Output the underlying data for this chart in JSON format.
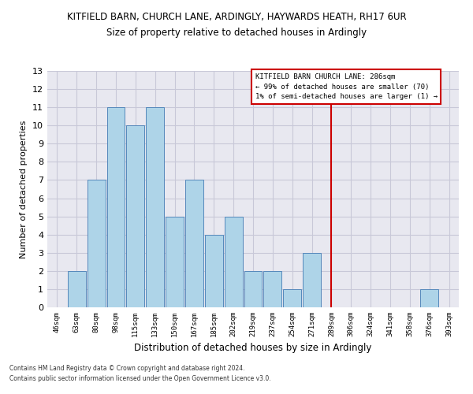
{
  "title_line1": "KITFIELD BARN, CHURCH LANE, ARDINGLY, HAYWARDS HEATH, RH17 6UR",
  "title_line2": "Size of property relative to detached houses in Ardingly",
  "xlabel": "Distribution of detached houses by size in Ardingly",
  "ylabel": "Number of detached properties",
  "bin_labels": [
    "46sqm",
    "63sqm",
    "80sqm",
    "98sqm",
    "115sqm",
    "133sqm",
    "150sqm",
    "167sqm",
    "185sqm",
    "202sqm",
    "219sqm",
    "237sqm",
    "254sqm",
    "271sqm",
    "289sqm",
    "306sqm",
    "324sqm",
    "341sqm",
    "358sqm",
    "376sqm",
    "393sqm"
  ],
  "bar_heights": [
    0,
    2,
    7,
    11,
    10,
    11,
    5,
    7,
    4,
    5,
    2,
    2,
    1,
    3,
    0,
    0,
    0,
    0,
    0,
    1,
    0
  ],
  "bar_color": "#aed4e8",
  "bar_edge_color": "#5588bb",
  "vline_x_index": 14,
  "vline_color": "#cc0000",
  "ylim": [
    0,
    13
  ],
  "yticks": [
    0,
    1,
    2,
    3,
    4,
    5,
    6,
    7,
    8,
    9,
    10,
    11,
    12,
    13
  ],
  "grid_color": "#c8c8d8",
  "bg_color": "#e8e8f0",
  "legend_text_line1": "KITFIELD BARN CHURCH LANE: 286sqm",
  "legend_text_line2": "← 99% of detached houses are smaller (70)",
  "legend_text_line3": "1% of semi-detached houses are larger (1) →",
  "legend_box_color": "#cc0000",
  "footnote_line1": "Contains HM Land Registry data © Crown copyright and database right 2024.",
  "footnote_line2": "Contains public sector information licensed under the Open Government Licence v3.0."
}
